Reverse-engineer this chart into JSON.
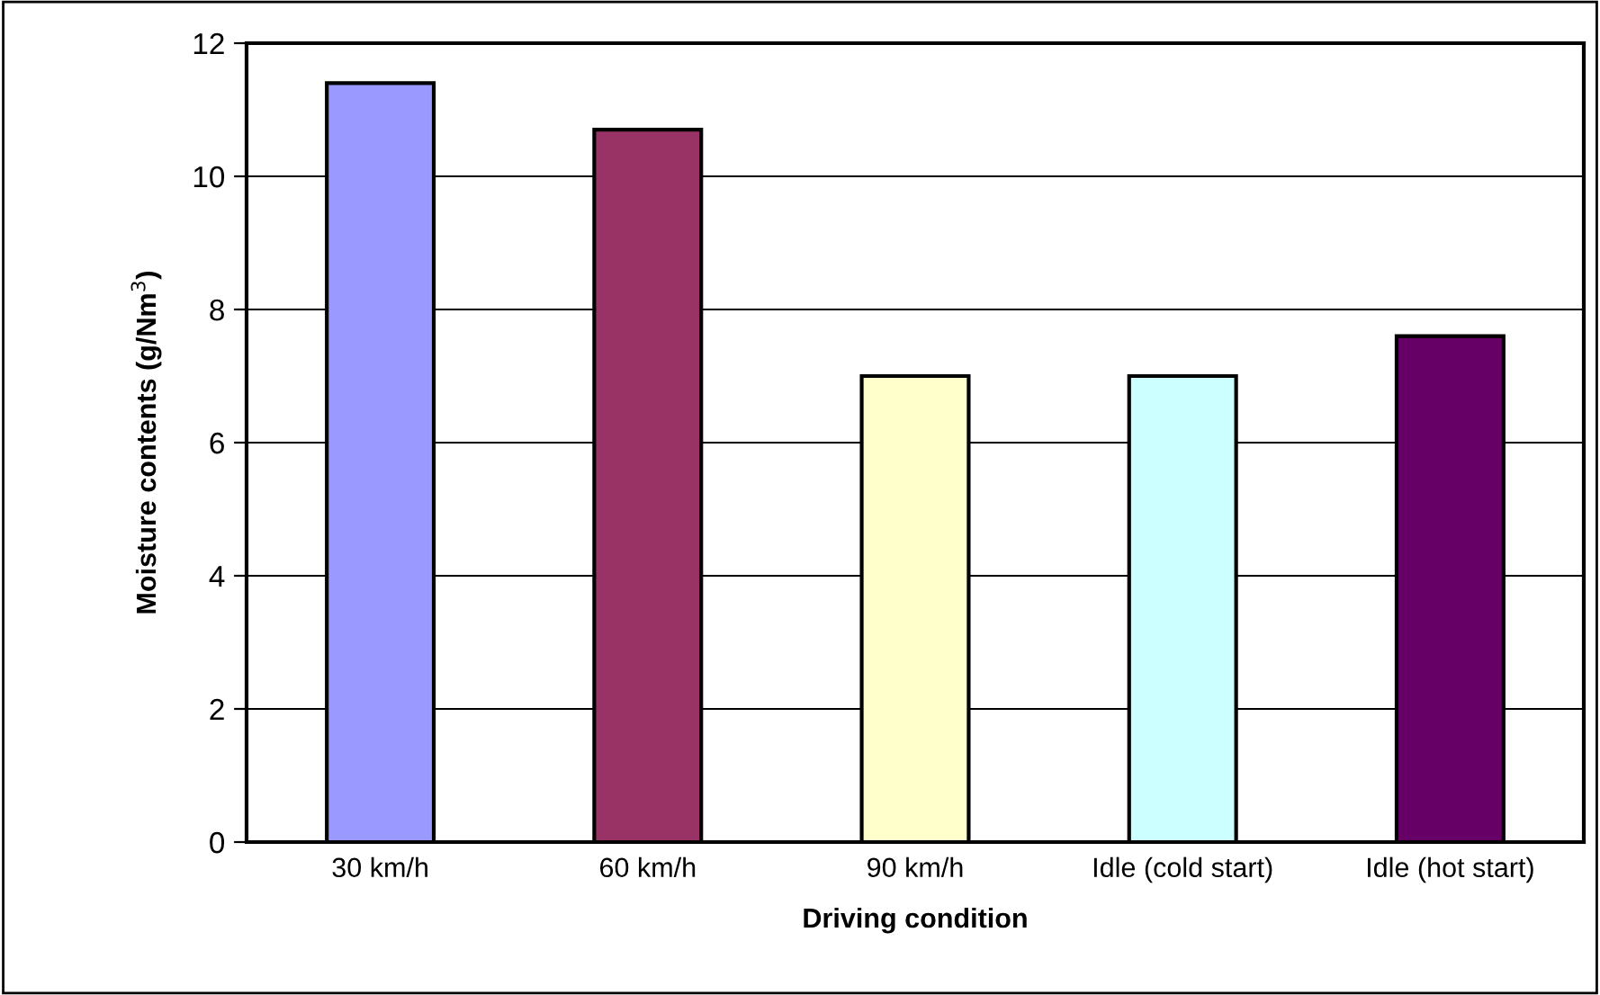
{
  "chart_data": {
    "type": "bar",
    "categories": [
      "30 km/h",
      "60 km/h",
      "90 km/h",
      "Idle (cold start)",
      "Idle (hot start)"
    ],
    "values": [
      11.4,
      10.7,
      7.0,
      7.0,
      7.6
    ],
    "colors": [
      "#9999ff",
      "#993366",
      "#ffffcc",
      "#ccffff",
      "#660066"
    ],
    "xlabel": "Driving condition",
    "ylabel": "Moisture contents (g/Nm$^{3}$)",
    "ylim": [
      0,
      12
    ],
    "yticks": [
      0,
      2,
      4,
      6,
      8,
      10,
      12
    ],
    "grid": "y",
    "legend": false
  }
}
